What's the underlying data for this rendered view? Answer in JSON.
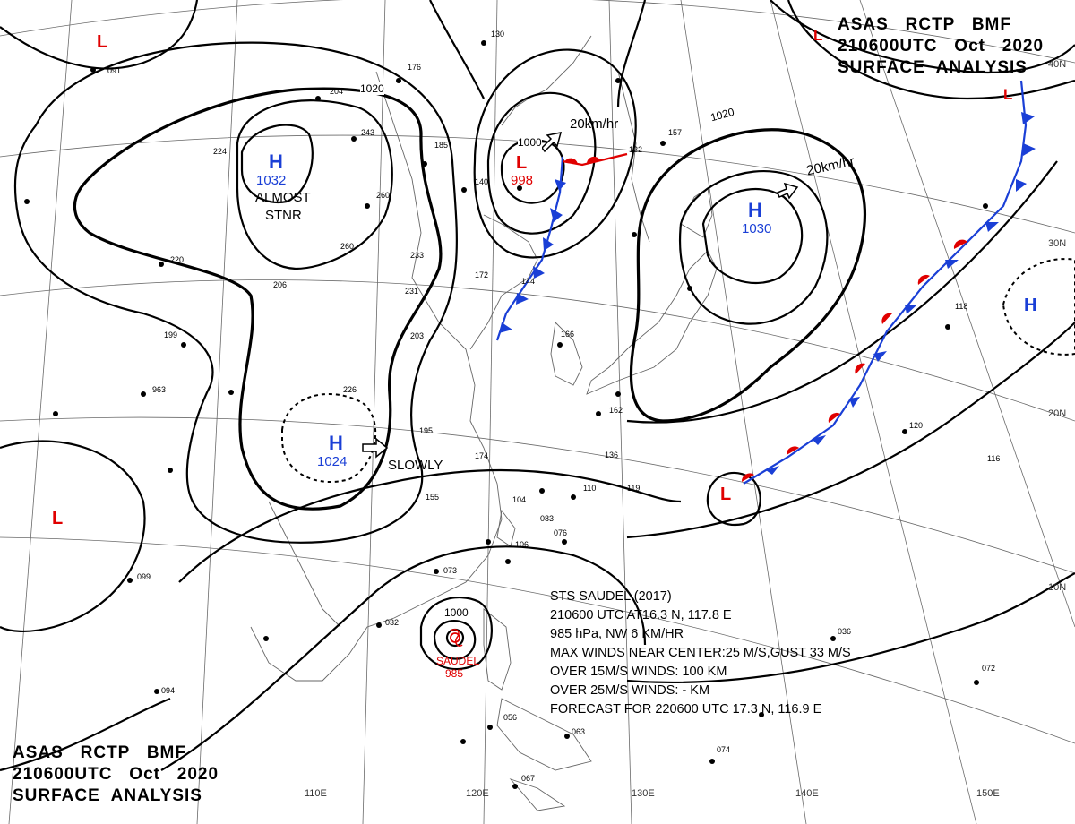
{
  "header_top": {
    "line1": "ASAS   RCTP   BMF",
    "line2": "210600UTC   Oct   2020",
    "line3": "SURFACE  ANALYSIS"
  },
  "header_bottom": {
    "line1": "ASAS   RCTP   BMF",
    "line2": "210600UTC   Oct   2020",
    "line3": "SURFACE  ANALYSIS"
  },
  "pressure_centers": [
    {
      "type": "H",
      "value": "1032",
      "note1": "ALMOST",
      "note2": "STNR"
    },
    {
      "type": "H",
      "value": "1024",
      "note1": "SLOWLY"
    },
    {
      "type": "L",
      "value": "998",
      "motion": "20km/hr"
    },
    {
      "type": "H",
      "value": "1030",
      "motion": "20km/hr"
    },
    {
      "type": "H",
      "value": ""
    },
    {
      "type": "L",
      "value": ""
    },
    {
      "type": "L",
      "value": ""
    },
    {
      "type": "L",
      "value": ""
    },
    {
      "type": "L",
      "value": ""
    }
  ],
  "isobar_labels": [
    "1020",
    "1020",
    "1000",
    "1000"
  ],
  "typhoon": {
    "name": "SAUDEL",
    "pressure": "985",
    "bulletin": [
      "STS  SAUDEL  (2017)",
      "210600 UTC  AT16.3 N, 117.8 E",
      "985 hPa, NW  6 KM/HR",
      "MAX WINDS NEAR CENTER:25 M/S,GUST 33 M/S",
      "OVER 15M/S WINDS: 100 KM",
      "OVER 25M/S WINDS: - KM",
      "FORECAST FOR 220600 UTC 17.3 N, 116.9 E"
    ]
  },
  "latitude_labels": [
    "40N",
    "30N",
    "20N",
    "10N"
  ],
  "longitude_labels": [
    "110E",
    "120E",
    "130E",
    "140E",
    "150E"
  ],
  "colors": {
    "low": "#e00000",
    "high": "#1a3fd6",
    "cold_front": "#1a3fd6",
    "warm_front": "#e00000",
    "isobar": "#000000",
    "coast": "#555555"
  },
  "station_samples": [
    "130",
    "176",
    "204",
    "243",
    "185",
    "122",
    "157",
    "260",
    "233",
    "231",
    "203",
    "166",
    "226",
    "195",
    "174",
    "162",
    "136",
    "110",
    "119",
    "104",
    "083",
    "076",
    "073",
    "106",
    "099",
    "963",
    "091",
    "074",
    "067",
    "063",
    "056",
    "072",
    "116",
    "118",
    "120",
    "094",
    "032",
    "036",
    "155",
    "199",
    "206",
    "260",
    "224",
    "220",
    "172",
    "144",
    "140"
  ]
}
